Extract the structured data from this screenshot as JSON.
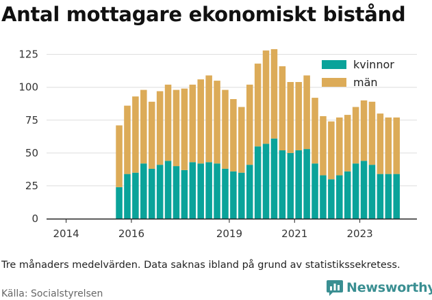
{
  "title": "Antal mottagare ekonomiskt bistånd",
  "note": "Tre månaders medelvärden. Data saknas ibland på grund av statistikssekretess.",
  "source": "Källa: Socialstyrelsen",
  "brand": {
    "name": "Newsworthy",
    "icon": "newsworthy-logo-icon",
    "color": "#3a8f92"
  },
  "chart_data": {
    "type": "bar",
    "stacked": true,
    "ylim": [
      0,
      130
    ],
    "yticks": [
      0,
      25,
      50,
      75,
      100,
      125
    ],
    "xlim": [
      2013.4,
      2024.75
    ],
    "xticks": [
      2014,
      2016,
      2019,
      2021,
      2023
    ],
    "grid": true,
    "legend": "top-right",
    "x": [
      2015.625,
      2015.875,
      2016.125,
      2016.375,
      2016.625,
      2016.875,
      2017.125,
      2017.375,
      2017.625,
      2017.875,
      2018.125,
      2018.375,
      2018.625,
      2018.875,
      2019.125,
      2019.375,
      2019.625,
      2019.875,
      2020.125,
      2020.375,
      2020.625,
      2020.875,
      2021.125,
      2021.375,
      2021.625,
      2021.875,
      2022.125,
      2022.375,
      2022.625,
      2022.875,
      2023.125,
      2023.375,
      2023.625,
      2023.875,
      2024.125
    ],
    "series": [
      {
        "name": "kvinnor",
        "color": "#0aa39a",
        "values": [
          24,
          34,
          35,
          42,
          38,
          41,
          44,
          40,
          37,
          43,
          42,
          43,
          42,
          38,
          36,
          35,
          41,
          55,
          57,
          61,
          52,
          50,
          52,
          53,
          42,
          33,
          30,
          33,
          36,
          42,
          44,
          41,
          34,
          34,
          34
        ]
      },
      {
        "name": "män",
        "color": "#dcab58",
        "values": [
          47,
          52,
          58,
          56,
          51,
          56,
          58,
          58,
          62,
          59,
          64,
          66,
          63,
          60,
          55,
          50,
          61,
          63,
          71,
          68,
          64,
          54,
          52,
          56,
          50,
          45,
          44,
          44,
          43,
          43,
          46,
          48,
          46,
          43,
          43
        ]
      }
    ]
  }
}
